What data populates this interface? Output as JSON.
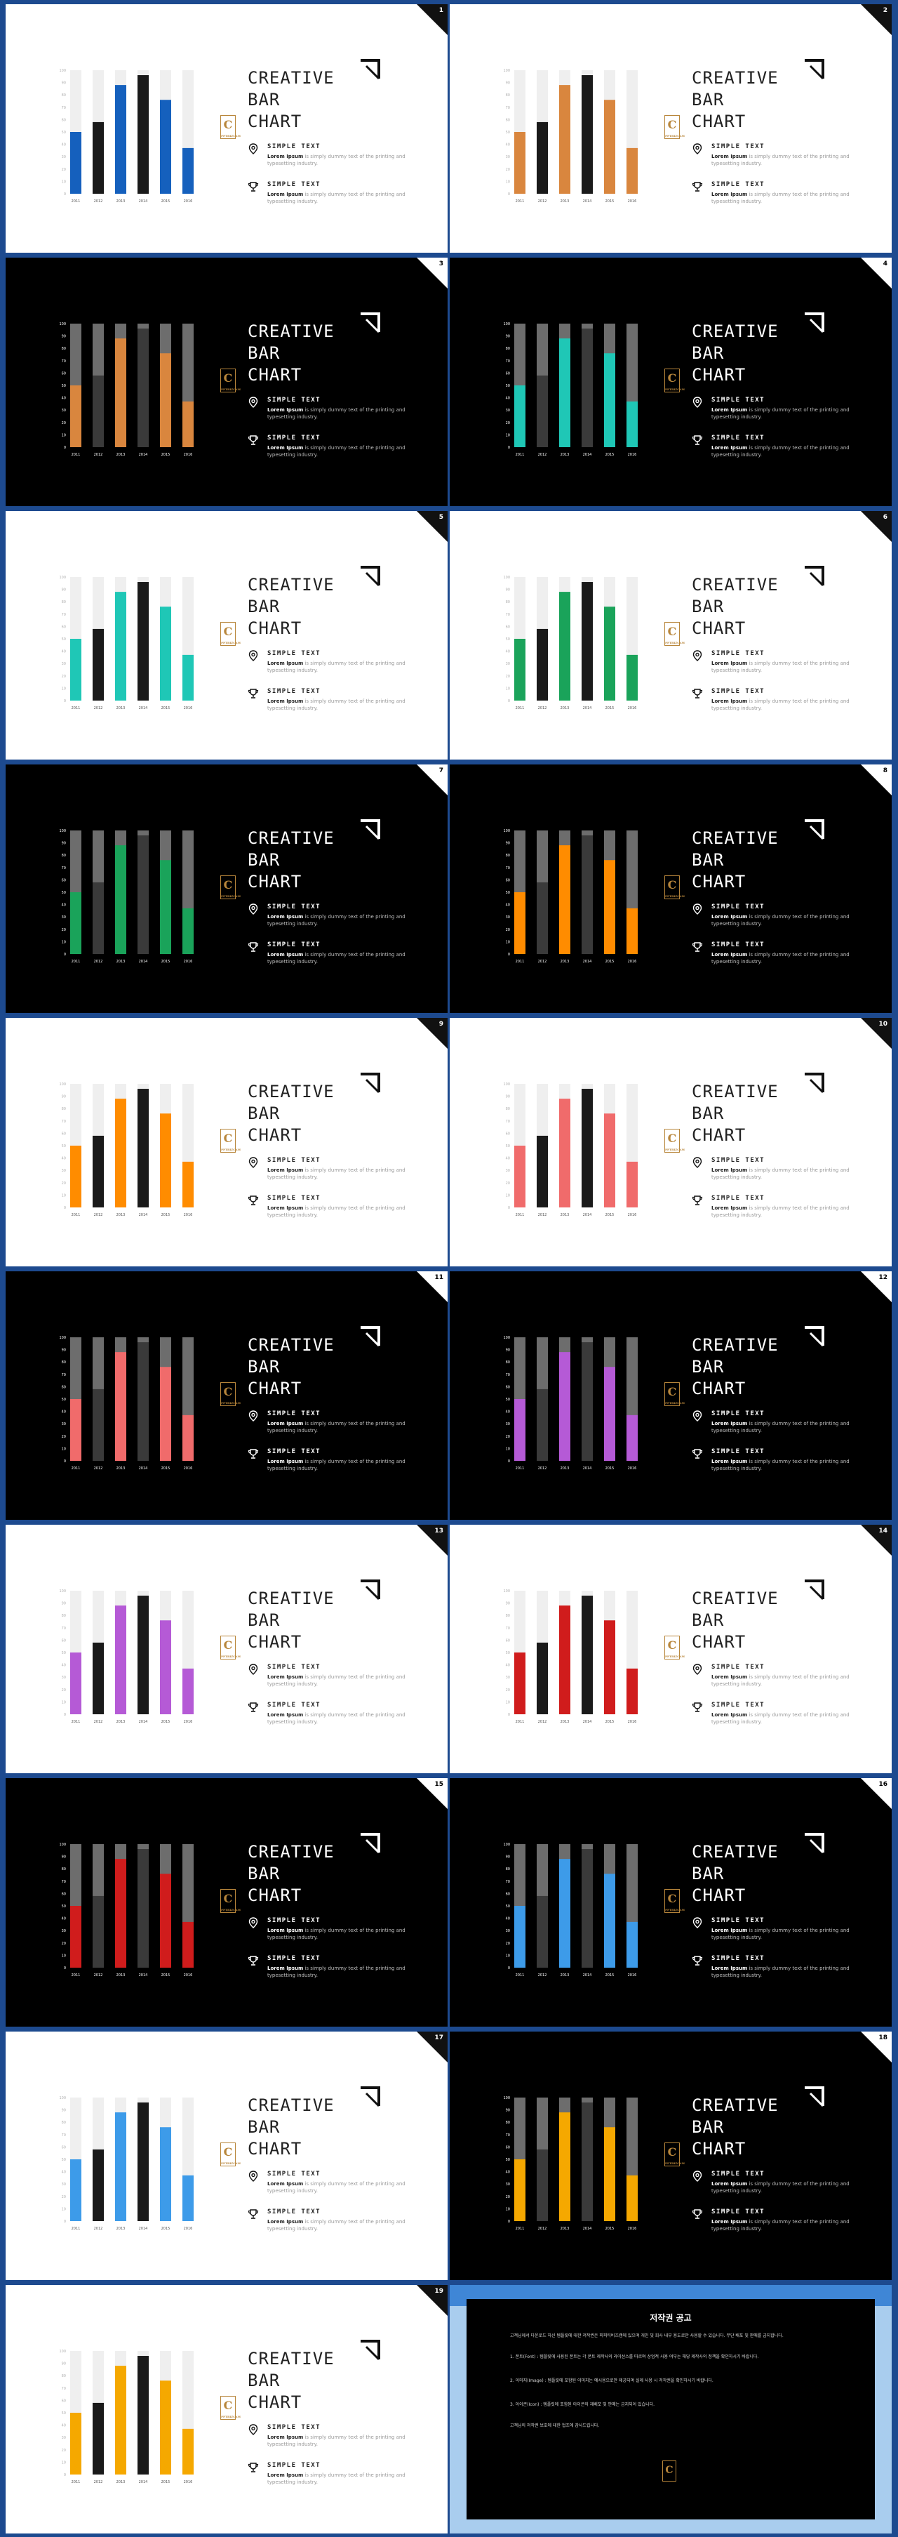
{
  "deck": {
    "title_text": "CREATIVE\nBAR\nCHART",
    "logo_letter": "C",
    "logo_sub": "PPTBIZCAM",
    "info_heading": "SIMPLE TEXT",
    "info_body_bold": "Lorem Ipsum",
    "info_body_rest": " is simply dummy text of the printing and typesetting industry."
  },
  "chart_data": {
    "type": "bar",
    "categories": [
      "2011",
      "2012",
      "2013",
      "2014",
      "2015",
      "2016"
    ],
    "values": [
      50,
      58,
      88,
      96,
      76,
      37
    ],
    "ylim": [
      0,
      100
    ],
    "yticks": [
      "0",
      "10",
      "20",
      "30",
      "40",
      "50",
      "60",
      "70",
      "80",
      "90",
      "100"
    ],
    "highlight_black_indices": [
      1,
      3
    ],
    "grid": false,
    "legend": "none"
  },
  "slides": [
    {
      "num": "1",
      "theme": "light",
      "accent": "#1560bd"
    },
    {
      "num": "2",
      "theme": "light",
      "accent": "#d9863e"
    },
    {
      "num": "3",
      "theme": "dark",
      "accent": "#d9863e"
    },
    {
      "num": "4",
      "theme": "dark",
      "accent": "#1fc7b6"
    },
    {
      "num": "5",
      "theme": "light",
      "accent": "#1fc7b6"
    },
    {
      "num": "6",
      "theme": "light",
      "accent": "#1aa35a"
    },
    {
      "num": "7",
      "theme": "dark",
      "accent": "#1aa35a"
    },
    {
      "num": "8",
      "theme": "dark",
      "accent": "#ff8c00"
    },
    {
      "num": "9",
      "theme": "light",
      "accent": "#ff8c00"
    },
    {
      "num": "10",
      "theme": "light",
      "accent": "#f06b6b"
    },
    {
      "num": "11",
      "theme": "dark",
      "accent": "#f06b6b"
    },
    {
      "num": "12",
      "theme": "dark",
      "accent": "#b55ad6"
    },
    {
      "num": "13",
      "theme": "light",
      "accent": "#b55ad6"
    },
    {
      "num": "14",
      "theme": "light",
      "accent": "#d01c1c"
    },
    {
      "num": "15",
      "theme": "dark",
      "accent": "#d01c1c"
    },
    {
      "num": "16",
      "theme": "dark",
      "accent": "#3d9be9"
    },
    {
      "num": "17",
      "theme": "light",
      "accent": "#3d9be9"
    },
    {
      "num": "18",
      "theme": "dark",
      "accent": "#f5a800"
    },
    {
      "num": "19",
      "theme": "light",
      "accent": "#f5a800"
    }
  ],
  "copyright": {
    "title": "저작권 공고",
    "para1": "고객님께서 다운로드 하신 템플릿에 대한 저작권은 피피티비즈캠에 있으며 개인 및 회사 내부 용도로만 사용할 수 있습니다. 무단 배포 및 판매를 금지합니다.",
    "para2": "1. 폰트(Font) : 템플릿에 사용된 폰트는 각 폰트 제작사의 라이선스를 따르며 상업적 사용 여부는 해당 제작사의 정책을 확인하시기 바랍니다.",
    "para3": "2. 이미지(Image) : 템플릿에 포함된 이미지는 예시용으로만 제공되며 실제 사용 시 저작권을 확인하시기 바랍니다.",
    "para4": "3. 아이콘(Icon) : 템플릿에 포함된 아이콘의 재배포 및 판매는 금지되어 있습니다.",
    "para5": "고객님의 저작권 보호에 대한 협조에 감사드립니다.",
    "logo_letter": "C"
  }
}
